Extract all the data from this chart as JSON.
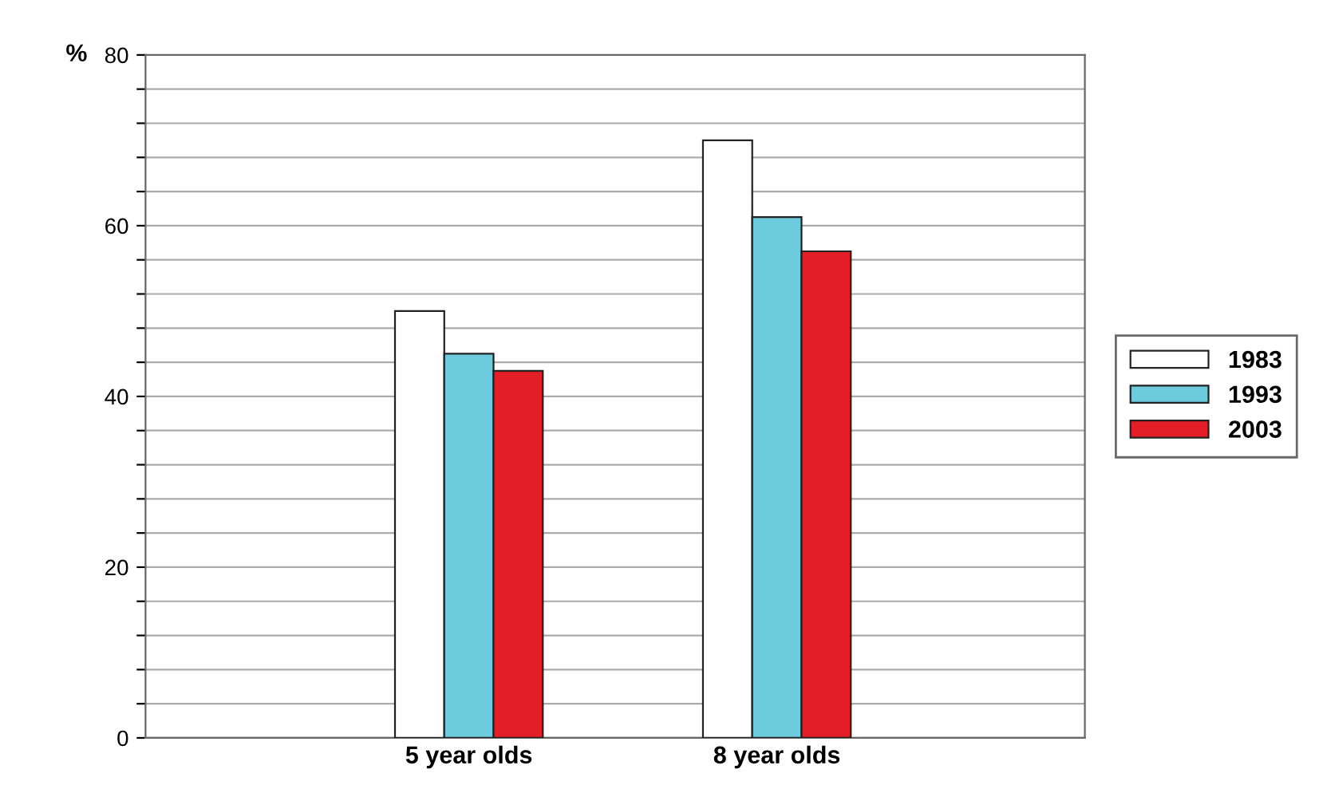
{
  "chart_data": {
    "type": "bar",
    "ylabel": "%",
    "categories": [
      "5 year olds",
      "8 year olds"
    ],
    "series": [
      {
        "name": "1983",
        "color": "#ffffff",
        "values": [
          50,
          70
        ]
      },
      {
        "name": "1993",
        "color": "#6ccbdc",
        "values": [
          45,
          61
        ]
      },
      {
        "name": "2003",
        "color": "#e41e26",
        "values": [
          43,
          57
        ]
      }
    ],
    "ylim": [
      0,
      80
    ],
    "yticks": [
      0,
      {
        "value": 4,
        "label": null
      },
      {
        "value": 8,
        "label": null
      },
      {
        "value": 12,
        "label": null
      },
      {
        "value": 16,
        "label": null
      },
      20,
      {
        "value": 24,
        "label": null
      },
      {
        "value": 28,
        "label": null
      },
      {
        "value": 32,
        "label": null
      },
      {
        "value": 36,
        "label": null
      },
      40,
      {
        "value": 44,
        "label": null
      },
      {
        "value": 48,
        "label": null
      },
      {
        "value": 52,
        "label": null
      },
      {
        "value": 56,
        "label": null
      },
      60,
      {
        "value": 64,
        "label": null
      },
      {
        "value": 68,
        "label": null
      },
      {
        "value": 72,
        "label": null
      },
      {
        "value": 76,
        "label": null
      },
      80
    ],
    "grid": "y",
    "legend": "right"
  }
}
